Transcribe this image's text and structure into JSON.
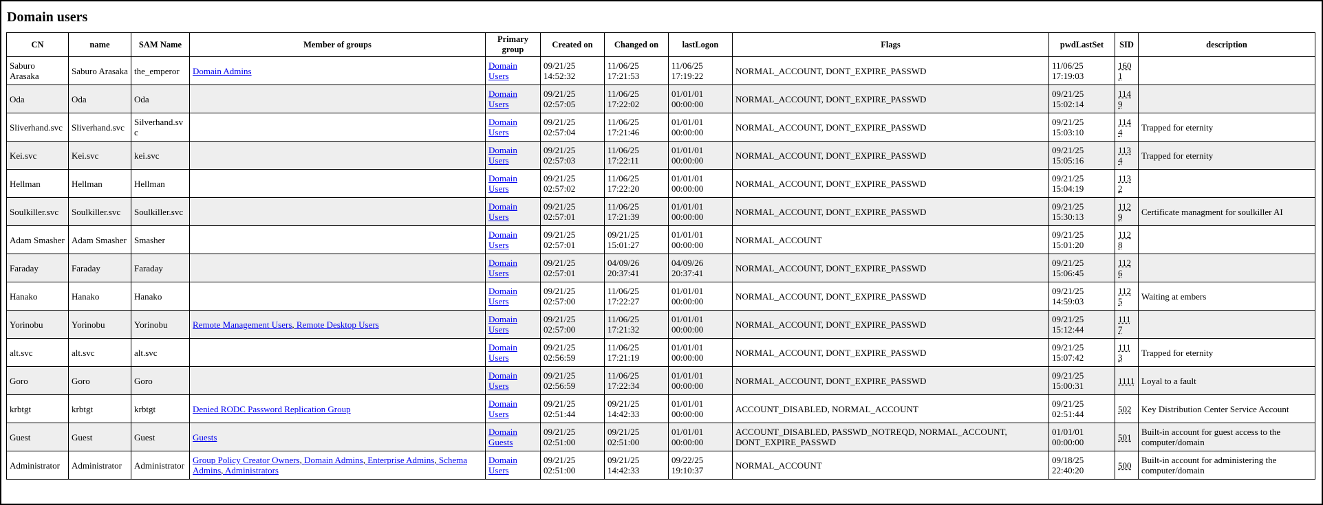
{
  "header": {
    "title": "Domain users"
  },
  "table": {
    "columns": [
      "CN",
      "name",
      "SAM Name",
      "Member of groups",
      "Primary group",
      "Created on",
      "Changed on",
      "lastLogon",
      "Flags",
      "pwdLastSet",
      "SID",
      "description"
    ],
    "rows": [
      [
        "Saburo Arasaka",
        "Saburo Arasaka",
        "the_emperor",
        [
          "Domain Admins"
        ],
        "Domain Users",
        "09/21/25 14:52:32",
        "11/06/25 17:21:53",
        "11/06/25 17:19:22",
        "NORMAL_ACCOUNT, DONT_EXPIRE_PASSWD",
        "11/06/25 17:19:03",
        "1601",
        null
      ],
      [
        "Oda",
        "Oda",
        "Oda",
        [],
        "Domain Users",
        "09/21/25 02:57:05",
        "11/06/25 17:22:02",
        "01/01/01 00:00:00",
        "NORMAL_ACCOUNT, DONT_EXPIRE_PASSWD",
        "09/21/25 15:02:14",
        "1149",
        null
      ],
      [
        "Sliverhand.svc",
        "Sliverhand.svc",
        "Silverhand.svc",
        [],
        "Domain Users",
        "09/21/25 02:57:04",
        "11/06/25 17:21:46",
        "01/01/01 00:00:00",
        "NORMAL_ACCOUNT, DONT_EXPIRE_PASSWD",
        "09/21/25 15:03:10",
        "1144",
        "Trapped for eternity"
      ],
      [
        "Kei.svc",
        "Kei.svc",
        "kei.svc",
        [],
        "Domain Users",
        "09/21/25 02:57:03",
        "11/06/25 17:22:11",
        "01/01/01 00:00:00",
        "NORMAL_ACCOUNT, DONT_EXPIRE_PASSWD",
        "09/21/25 15:05:16",
        "1134",
        "Trapped for eternity"
      ],
      [
        "Hellman",
        "Hellman",
        "Hellman",
        [],
        "Domain Users",
        "09/21/25 02:57:02",
        "11/06/25 17:22:20",
        "01/01/01 00:00:00",
        "NORMAL_ACCOUNT, DONT_EXPIRE_PASSWD",
        "09/21/25 15:04:19",
        "1132",
        null
      ],
      [
        "Soulkiller.svc",
        "Soulkiller.svc",
        "Soulkiller.svc",
        [],
        "Domain Users",
        "09/21/25 02:57:01",
        "11/06/25 17:21:39",
        "01/01/01 00:00:00",
        "NORMAL_ACCOUNT, DONT_EXPIRE_PASSWD",
        "09/21/25 15:30:13",
        "1129",
        "Certificate managment for soulkiller AI"
      ],
      [
        "Adam Smasher",
        "Adam Smasher",
        "Smasher",
        [],
        "Domain Users",
        "09/21/25 02:57:01",
        "09/21/25 15:01:27",
        "01/01/01 00:00:00",
        "NORMAL_ACCOUNT",
        "09/21/25 15:01:20",
        "1128",
        null
      ],
      [
        "Faraday",
        "Faraday",
        "Faraday",
        [],
        "Domain Users",
        "09/21/25 02:57:01",
        "04/09/26 20:37:41",
        "04/09/26 20:37:41",
        "NORMAL_ACCOUNT, DONT_EXPIRE_PASSWD",
        "09/21/25 15:06:45",
        "1126",
        null
      ],
      [
        "Hanako",
        "Hanako",
        "Hanako",
        [],
        "Domain Users",
        "09/21/25 02:57:00",
        "11/06/25 17:22:27",
        "01/01/01 00:00:00",
        "NORMAL_ACCOUNT, DONT_EXPIRE_PASSWD",
        "09/21/25 14:59:03",
        "1125",
        "Waiting at embers"
      ],
      [
        "Yorinobu",
        "Yorinobu",
        "Yorinobu",
        [
          "Remote Management Users",
          "Remote Desktop Users"
        ],
        "Domain Users",
        "09/21/25 02:57:00",
        "11/06/25 17:21:32",
        "01/01/01 00:00:00",
        "NORMAL_ACCOUNT, DONT_EXPIRE_PASSWD",
        "09/21/25 15:12:44",
        "1117",
        null
      ],
      [
        "alt.svc",
        "alt.svc",
        "alt.svc",
        [],
        "Domain Users",
        "09/21/25 02:56:59",
        "11/06/25 17:21:19",
        "01/01/01 00:00:00",
        "NORMAL_ACCOUNT, DONT_EXPIRE_PASSWD",
        "09/21/25 15:07:42",
        "1113",
        "Trapped for eternity"
      ],
      [
        "Goro",
        "Goro",
        "Goro",
        [],
        "Domain Users",
        "09/21/25 02:56:59",
        "11/06/25 17:22:34",
        "01/01/01 00:00:00",
        "NORMAL_ACCOUNT, DONT_EXPIRE_PASSWD",
        "09/21/25 15:00:31",
        "1111",
        "Loyal to a fault"
      ],
      [
        "krbtgt",
        "krbtgt",
        "krbtgt",
        [
          "Denied RODC Password Replication Group"
        ],
        "Domain Users",
        "09/21/25 02:51:44",
        "09/21/25 14:42:33",
        "01/01/01 00:00:00",
        "ACCOUNT_DISABLED, NORMAL_ACCOUNT",
        "09/21/25 02:51:44",
        "502",
        "Key Distribution Center Service Account"
      ],
      [
        "Guest",
        "Guest",
        "Guest",
        [
          "Guests"
        ],
        "Domain Guests",
        "09/21/25 02:51:00",
        "09/21/25 02:51:00",
        "01/01/01 00:00:00",
        "ACCOUNT_DISABLED, PASSWD_NOTREQD, NORMAL_ACCOUNT, DONT_EXPIRE_PASSWD",
        "01/01/01 00:00:00",
        "501",
        "Built-in account for guest access to the computer/domain"
      ],
      [
        "Administrator",
        "Administrator",
        "Administrator",
        [
          "Group Policy Creator Owners",
          "Domain Admins",
          "Enterprise Admins",
          "Schema Admins",
          "Administrators"
        ],
        "Domain Users",
        "09/21/25 02:51:00",
        "09/21/25 14:42:33",
        "09/22/25 19:10:37",
        "NORMAL_ACCOUNT",
        "09/18/25 22:40:20",
        "500",
        "Built-in account for administering the computer/domain"
      ]
    ]
  }
}
